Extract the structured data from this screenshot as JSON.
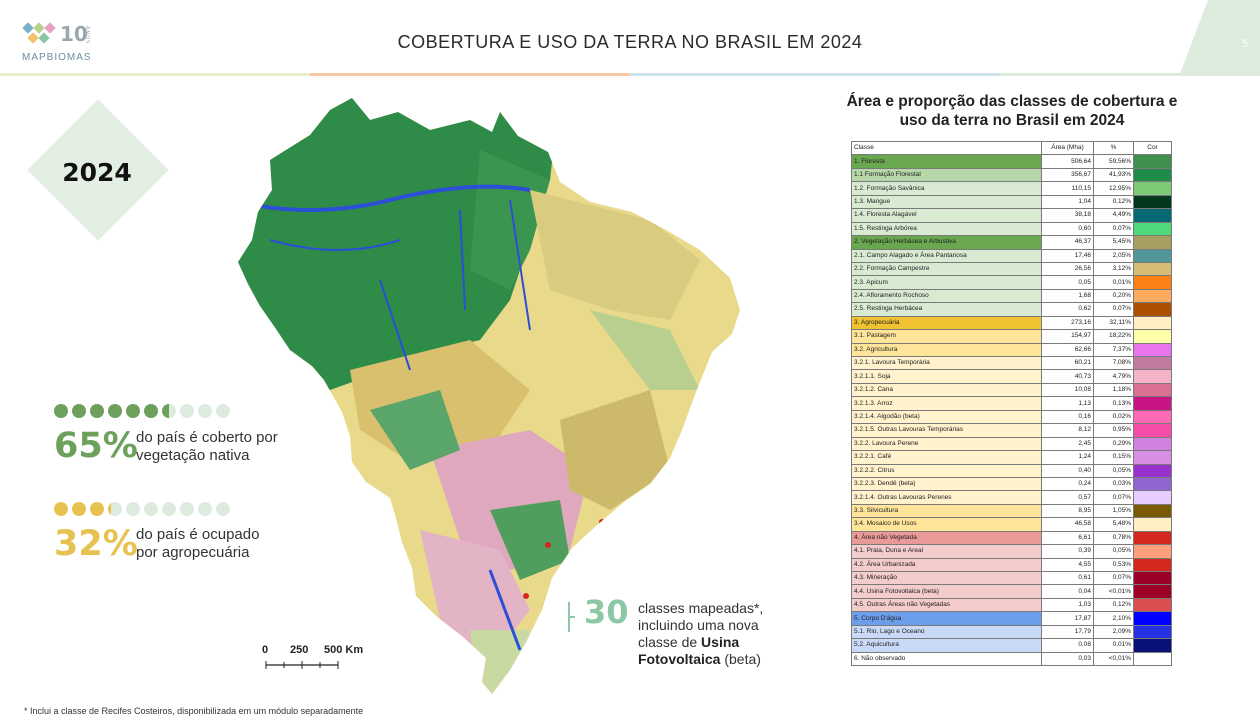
{
  "header": {
    "title": "COBERTURA E USO DA TERRA NO BRASIL EM 2024",
    "page_number": "5",
    "logo_text": "MAPBIOMAS",
    "logo_number": "10",
    "logo_small": "ANOS"
  },
  "year_badge": "2024",
  "stats": [
    {
      "pct": "65%",
      "text_line1": "do país é coberto por",
      "text_line2": "vegetação nativa",
      "filled_fraction": 0.65,
      "color": "#6da05a"
    },
    {
      "pct": "32%",
      "text_line1": "do país é ocupado",
      "text_line2": "por agropecuária",
      "filled_fraction": 0.32,
      "color": "#e8c251"
    }
  ],
  "scale_bar": {
    "labels": [
      "0",
      "250",
      "500 Km"
    ]
  },
  "classes_callout": {
    "number": "30",
    "line1": "classes mapeadas*,",
    "line2": "incluindo uma nova",
    "line3_pre": "classe de ",
    "line3_bold": "Usina",
    "line4_bold": "Fotovoltaica",
    "line4_post": " (beta)"
  },
  "footnote": "* Inclui a classe de Recifes Costeiros, disponibilizada em um módulo separadamente",
  "table": {
    "title_line1": "Área e proporção das classes de cobertura e",
    "title_line2": "uso da terra no Brasil em 2024",
    "headers": [
      "Classe",
      "Área (Mha)",
      "%",
      "Cor"
    ],
    "rows": [
      {
        "name": "1. Floresta",
        "area": "506,64",
        "pct": "59,56%",
        "bg": "#6aa84f",
        "color": "#3f8f4f"
      },
      {
        "name": "1.1 Formação Florestal",
        "area": "356,67",
        "pct": "41,93%",
        "bg": "#b6d7a8",
        "color": "#1f8d49"
      },
      {
        "name": "1.2. Formação Savânica",
        "area": "110,15",
        "pct": "12,95%",
        "bg": "#d9ead3",
        "color": "#7dc975"
      },
      {
        "name": "1.3. Mangue",
        "area": "1,04",
        "pct": "0,12%",
        "bg": "#d9ead3",
        "color": "#04381d"
      },
      {
        "name": "1.4. Floresta Alagável",
        "area": "38,18",
        "pct": "4,49%",
        "bg": "#d9ead3",
        "color": "#026975"
      },
      {
        "name": "1.5. Restinga Arbórea",
        "area": "0,60",
        "pct": "0,07%",
        "bg": "#d9ead3",
        "color": "#4fd97b"
      },
      {
        "name": "2. Vegetação Herbácea e Arbustiva",
        "area": "46,37",
        "pct": "5,45%",
        "bg": "#6aa84f",
        "color": "#a69f62"
      },
      {
        "name": "2.1. Campo Alagado e Área Pantanosa",
        "area": "17,46",
        "pct": "2,05%",
        "bg": "#d9ead3",
        "color": "#519799"
      },
      {
        "name": "2.2. Formação Campestre",
        "area": "26,56",
        "pct": "3,12%",
        "bg": "#d9ead3",
        "color": "#d6bc74"
      },
      {
        "name": "2.3. Apicum",
        "area": "0,05",
        "pct": "0,01%",
        "bg": "#d9ead3",
        "color": "#fc8114"
      },
      {
        "name": "2.4. Afloramento Rochoso",
        "area": "1,68",
        "pct": "0,20%",
        "bg": "#d9ead3",
        "color": "#ffaa5f"
      },
      {
        "name": "2.5. Restinga Herbácea",
        "area": "0,62",
        "pct": "0,07%",
        "bg": "#d9ead3",
        "color": "#ad5100"
      },
      {
        "name": "3. Agropecuária",
        "area": "273,16",
        "pct": "32,11%",
        "bg": "#f1c232",
        "color": "#ffefc3"
      },
      {
        "name": "3.1. Pastagem",
        "area": "154,97",
        "pct": "18,22%",
        "bg": "#ffe599",
        "color": "#ffffa8"
      },
      {
        "name": "3.2. Agricultura",
        "area": "62,66",
        "pct": "7,37%",
        "bg": "#ffe599",
        "color": "#e974ed"
      },
      {
        "name": "3.2.1. Lavoura Temporária",
        "area": "60,21",
        "pct": "7,08%",
        "bg": "#fff2cc",
        "color": "#c27ba0"
      },
      {
        "name": "3.2.1.1. Soja",
        "area": "40,73",
        "pct": "4,79%",
        "bg": "#fff2cc",
        "color": "#f5b3c8"
      },
      {
        "name": "3.2.1.2. Cana",
        "area": "10,08",
        "pct": "1,18%",
        "bg": "#fff2cc",
        "color": "#db7093"
      },
      {
        "name": "3.2.1.3. Arroz",
        "area": "1,13",
        "pct": "0,13%",
        "bg": "#fff2cc",
        "color": "#c71585"
      },
      {
        "name": "3.2.1.4. Algodão (beta)",
        "area": "0,16",
        "pct": "0,02%",
        "bg": "#fff2cc",
        "color": "#ff69b4"
      },
      {
        "name": "3.2.1.5. Outras Lavouras Temporárias",
        "area": "8,12",
        "pct": "0,95%",
        "bg": "#fff2cc",
        "color": "#f54ca9"
      },
      {
        "name": "3.2.2. Lavoura Perene",
        "area": "2,45",
        "pct": "0,29%",
        "bg": "#fff2cc",
        "color": "#d082de"
      },
      {
        "name": "3.2.2.1. Café",
        "area": "1,24",
        "pct": "0,15%",
        "bg": "#fff2cc",
        "color": "#d68fe2"
      },
      {
        "name": "3.2.2.2. Citrus",
        "area": "0,40",
        "pct": "0,05%",
        "bg": "#fff2cc",
        "color": "#9932cc"
      },
      {
        "name": "3.2.2.3. Dendê (beta)",
        "area": "0,24",
        "pct": "0,03%",
        "bg": "#fff2cc",
        "color": "#9065d0"
      },
      {
        "name": "3.2.1.4. Outras Lavouras Perenes",
        "area": "0,57",
        "pct": "0,07%",
        "bg": "#fff2cc",
        "color": "#e6ccff"
      },
      {
        "name": "3.3. Silvicultura",
        "area": "8,95",
        "pct": "1,05%",
        "bg": "#ffe599",
        "color": "#7a5900"
      },
      {
        "name": "3.4. Mosaico de Usos",
        "area": "46,58",
        "pct": "5,48%",
        "bg": "#ffe599",
        "color": "#ffefc3"
      },
      {
        "name": "4. Área não Vegetada",
        "area": "6,61",
        "pct": "0,78%",
        "bg": "#ea9999",
        "color": "#d4271e"
      },
      {
        "name": "4.1. Praia, Duna e Areal",
        "area": "0,39",
        "pct": "0,05%",
        "bg": "#f4cccc",
        "color": "#ffa07a"
      },
      {
        "name": "4.2. Área Urbanizada",
        "area": "4,55",
        "pct": "0,53%",
        "bg": "#f4cccc",
        "color": "#d4271e"
      },
      {
        "name": "4.3. Mineração",
        "area": "0,61",
        "pct": "0,07%",
        "bg": "#f4cccc",
        "color": "#9c0027"
      },
      {
        "name": "4.4. Usina Fotovoltaica (beta)",
        "area": "0,04",
        "pct": "<0,01%",
        "bg": "#f4cccc",
        "color": "#9c0027"
      },
      {
        "name": "4.5. Outras Áreas não Vegetadas",
        "area": "1,03",
        "pct": "0,12%",
        "bg": "#f4cccc",
        "color": "#db4d4f"
      },
      {
        "name": "5. Corpo D'água",
        "area": "17,87",
        "pct": "2,10%",
        "bg": "#6d9eeb",
        "color": "#0000ff"
      },
      {
        "name": "5.1. Rio, Lago e Oceano",
        "area": "17,79",
        "pct": "2,09%",
        "bg": "#c9daf8",
        "color": "#2532e4"
      },
      {
        "name": "5.2. Aquicultura",
        "area": "0,08",
        "pct": "0,01%",
        "bg": "#c9daf8",
        "color": "#091077"
      },
      {
        "name": "6. Não observado",
        "area": "0,03",
        "pct": "<0,01%",
        "bg": "#ffffff",
        "color": "#ffffff"
      }
    ]
  }
}
